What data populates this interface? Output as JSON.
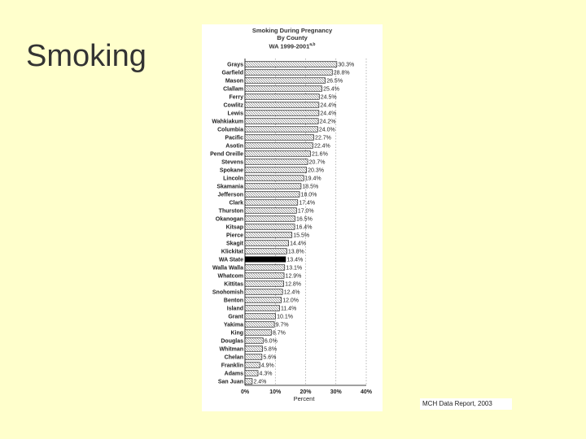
{
  "slide": {
    "title": "Smoking"
  },
  "source_note": "MCH Data Report, 2003",
  "chart_data": {
    "type": "bar",
    "orientation": "horizontal",
    "title_lines": [
      "Smoking During Pregnancy",
      "By County",
      "WA 1999-2001"
    ],
    "title_superscript": "a,b",
    "xlabel": "Percent",
    "ylabel": "",
    "xlim": [
      0,
      40
    ],
    "x_ticks": [
      0,
      10,
      20,
      30,
      40
    ],
    "x_tick_labels": [
      "0%",
      "10%",
      "20%",
      "30%",
      "40%"
    ],
    "grid": true,
    "highlight_category": "WA State",
    "categories": [
      "Grays",
      "Garfield",
      "Mason",
      "Clallam",
      "Ferry",
      "Cowlitz",
      "Lewis",
      "Wahkiakum",
      "Columbia",
      "Pacific",
      "Asotin",
      "Pend Oreille",
      "Stevens",
      "Spokane",
      "Lincoln",
      "Skamania",
      "Jefferson",
      "Clark",
      "Thurston",
      "Okanogan",
      "Kitsap",
      "Pierce",
      "Skagit",
      "Klickitat",
      "WA State",
      "Walla Walla",
      "Whatcom",
      "Kittitas",
      "Snohomish",
      "Benton",
      "Island",
      "Grant",
      "Yakima",
      "King",
      "Douglas",
      "Whitman",
      "Chelan",
      "Franklin",
      "Adams",
      "San Juan"
    ],
    "values": [
      30.3,
      28.8,
      26.5,
      25.4,
      24.5,
      24.4,
      24.4,
      24.2,
      24.0,
      22.7,
      22.4,
      21.6,
      20.7,
      20.3,
      19.4,
      18.5,
      18.0,
      17.4,
      17.0,
      16.5,
      16.4,
      15.5,
      14.4,
      13.8,
      13.4,
      13.1,
      12.9,
      12.8,
      12.4,
      12.0,
      11.4,
      10.1,
      9.7,
      8.7,
      6.0,
      5.8,
      5.6,
      4.9,
      4.3,
      2.4
    ],
    "value_labels": [
      "30.3%",
      "28.8%",
      "26.5%",
      "25.4%",
      "24.5%",
      "24.4%",
      "24.4%",
      "24.2%",
      "24.0%",
      "22.7%",
      "22.4%",
      "21.6%",
      "20.7%",
      "20.3%",
      "19.4%",
      "18.5%",
      "18.0%",
      "17.4%",
      "17.0%",
      "16.5%",
      "16.4%",
      "15.5%",
      "14.4%",
      "13.8%",
      "13.4%",
      "13.1%",
      "12.9%",
      "12.8%",
      "12.4%",
      "12.0%",
      "11.4%",
      "10.1%",
      "9.7%",
      "8.7%",
      "6.0%",
      "5.8%",
      "5.6%",
      "4.9%",
      "4.3%",
      "2.4%"
    ]
  }
}
